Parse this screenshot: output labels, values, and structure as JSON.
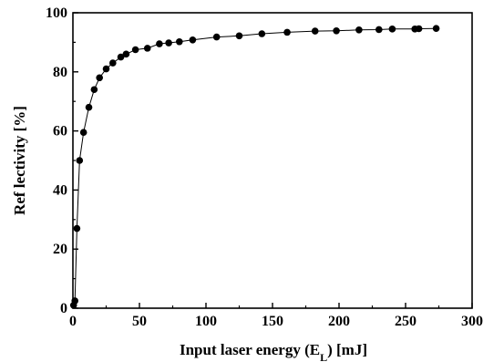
{
  "chart_data": {
    "type": "scatter",
    "title": "",
    "xlabel": "Input laser energy (E",
    "xlabel_sub": "L",
    "xlabel_end": ") [mJ]",
    "ylabel": "Ref lectivity [%]",
    "xlim": [
      0,
      300
    ],
    "ylim": [
      0,
      100
    ],
    "xticks": [
      0,
      50,
      100,
      150,
      200,
      250,
      300
    ],
    "yticks": [
      0,
      20,
      40,
      60,
      80,
      100
    ],
    "grid": false,
    "connect_points": true,
    "marker": "filled-circle",
    "colors": {
      "marker": "#000000",
      "line": "#000000",
      "axis": "#000000"
    },
    "series": [
      {
        "name": "",
        "points": [
          [
            0.5,
            1
          ],
          [
            1.5,
            2.5
          ],
          [
            3,
            27
          ],
          [
            5,
            50
          ],
          [
            8,
            59.5
          ],
          [
            12,
            68
          ],
          [
            16,
            74
          ],
          [
            20,
            78
          ],
          [
            25,
            81
          ],
          [
            30,
            83
          ],
          [
            36,
            85
          ],
          [
            40,
            86
          ],
          [
            47,
            87.5
          ],
          [
            56,
            88
          ],
          [
            65,
            89.5
          ],
          [
            72,
            89.8
          ],
          [
            80,
            90.2
          ],
          [
            90,
            90.8
          ],
          [
            108,
            91.8
          ],
          [
            125,
            92.2
          ],
          [
            142,
            92.9
          ],
          [
            161,
            93.4
          ],
          [
            182,
            93.8
          ],
          [
            198,
            93.9
          ],
          [
            215,
            94.2
          ],
          [
            230,
            94.3
          ],
          [
            240,
            94.5
          ],
          [
            257,
            94.5
          ],
          [
            260,
            94.6
          ],
          [
            273,
            94.7
          ]
        ]
      }
    ]
  }
}
